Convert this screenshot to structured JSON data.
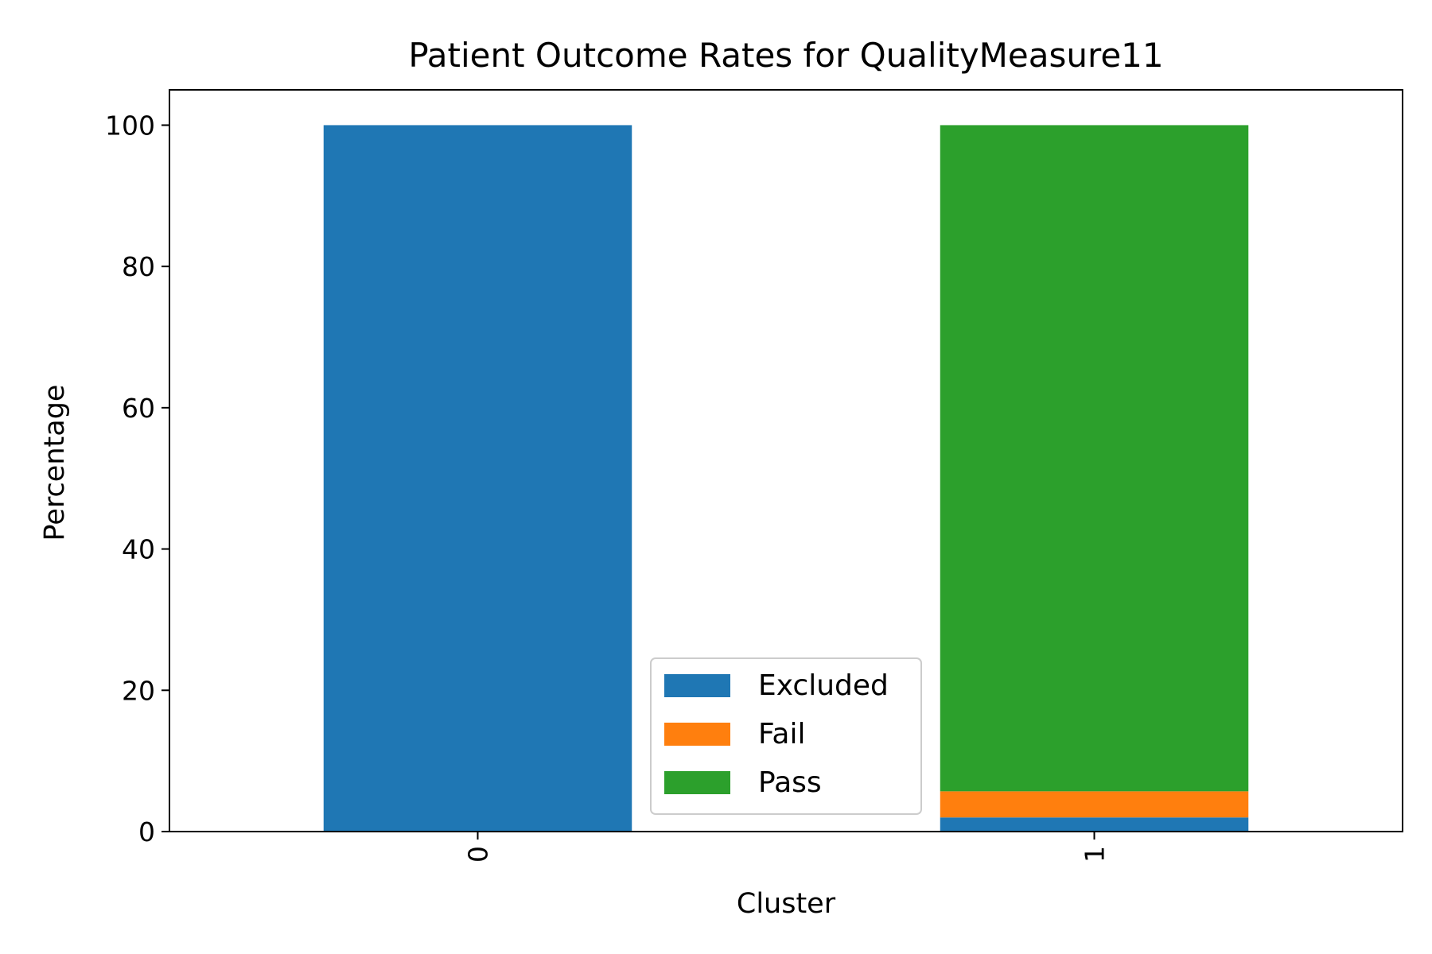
{
  "chart_data": {
    "type": "bar",
    "stacked": true,
    "title": "Patient Outcome Rates for QualityMeasure11",
    "xlabel": "Cluster",
    "ylabel": "Percentage",
    "categories": [
      "0",
      "1"
    ],
    "series": [
      {
        "name": "Excluded",
        "color": "#1f77b4",
        "values": [
          100,
          2.0
        ]
      },
      {
        "name": "Fail",
        "color": "#ff7f0e",
        "values": [
          0,
          3.7
        ]
      },
      {
        "name": "Pass",
        "color": "#2ca02c",
        "values": [
          0,
          94.3
        ]
      }
    ],
    "ylim": [
      0,
      105
    ],
    "yticks": [
      0,
      20,
      40,
      60,
      80,
      100
    ],
    "xtick_rotation": 90,
    "grid": false,
    "legend_position": "lower-center"
  }
}
